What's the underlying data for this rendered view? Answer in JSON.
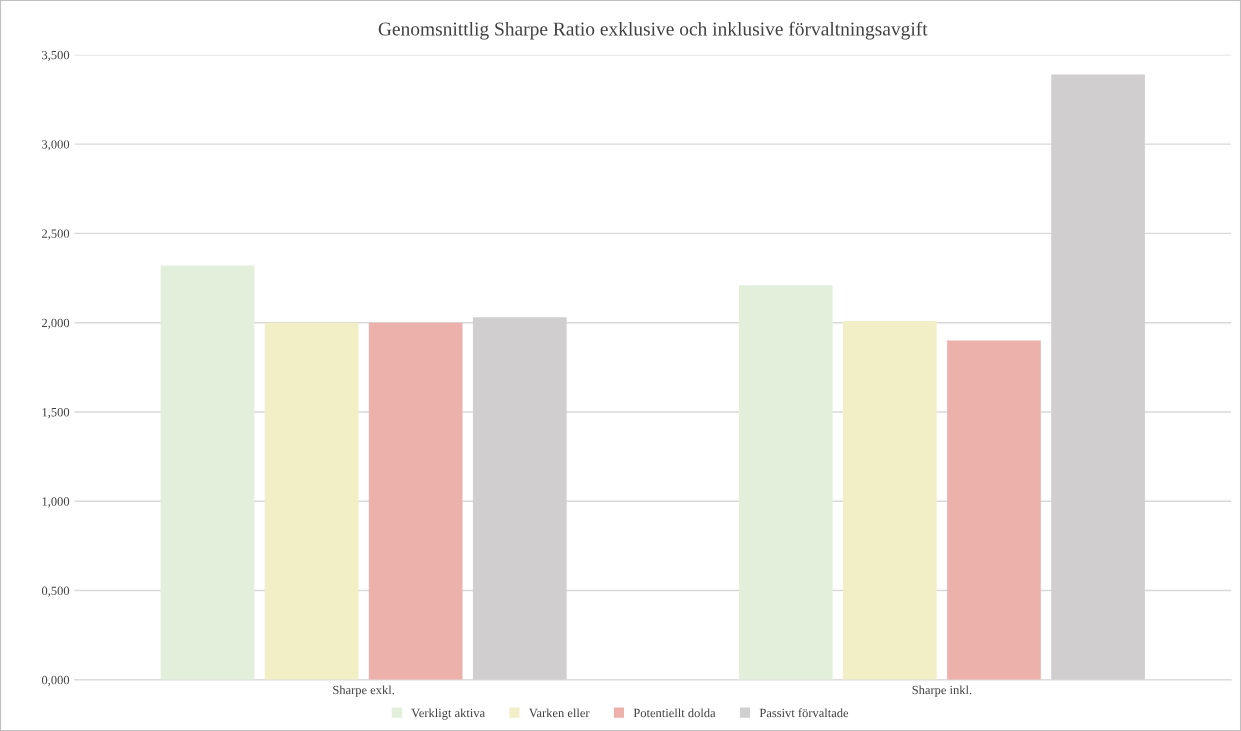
{
  "chart_data": {
    "type": "bar",
    "title": "Genomsnittlig Sharpe Ratio exklusive och inklusive förvaltningsavgift",
    "categories": [
      "Sharpe exkl.",
      "Sharpe inkl."
    ],
    "series": [
      {
        "name": "Verkligt aktiva",
        "color": "#e2efda",
        "values": [
          2.32,
          2.21
        ]
      },
      {
        "name": "Varken eller",
        "color": "#f2eec6",
        "values": [
          2.0,
          2.01
        ]
      },
      {
        "name": "Potentiellt dolda",
        "color": "#ecb1ab",
        "values": [
          2.0,
          1.9
        ]
      },
      {
        "name": "Passivt förvaltade",
        "color": "#d0cecf",
        "values": [
          2.03,
          3.39
        ]
      }
    ],
    "ylim": [
      0,
      3.5
    ],
    "yticks": [
      {
        "value": 0,
        "label": "0,000"
      },
      {
        "value": 0.5,
        "label": "0,500"
      },
      {
        "value": 1,
        "label": "1,000"
      },
      {
        "value": 1.5,
        "label": "1,500"
      },
      {
        "value": 2,
        "label": "2,000"
      },
      {
        "value": 2.5,
        "label": "2,500"
      },
      {
        "value": 3,
        "label": "3,000"
      },
      {
        "value": 3.5,
        "label": "3,500"
      }
    ],
    "grid": "y",
    "legend": "bottom"
  }
}
